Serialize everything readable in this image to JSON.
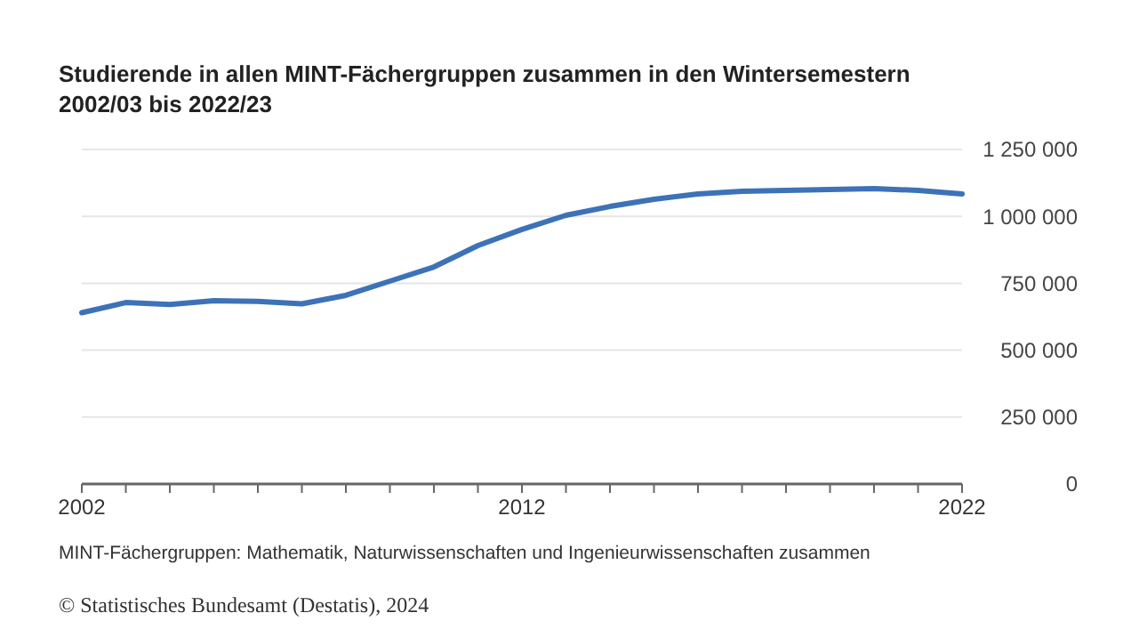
{
  "chart_data": {
    "type": "line",
    "title": "Studierende in allen MINT-Fächergruppen zusammen in den Wintersemestern 2002/03 bis 2022/23",
    "x": [
      2002,
      2003,
      2004,
      2005,
      2006,
      2007,
      2008,
      2009,
      2010,
      2011,
      2012,
      2013,
      2014,
      2015,
      2016,
      2017,
      2018,
      2019,
      2020,
      2021,
      2022
    ],
    "series": [
      {
        "color": "#3d72b8",
        "values": [
          640000,
          678000,
          671000,
          685000,
          682000,
          673000,
          705000,
          758000,
          811000,
          891000,
          951000,
          1004000,
          1037000,
          1064000,
          1084000,
          1094000,
          1097000,
          1100000,
          1104000,
          1097000,
          1084000
        ]
      }
    ],
    "xlim": [
      2002,
      2022
    ],
    "xticks": [
      2002,
      {
        "value": 2003,
        "label": null
      },
      {
        "value": 2004,
        "label": null
      },
      {
        "value": 2005,
        "label": null
      },
      {
        "value": 2006,
        "label": null
      },
      {
        "value": 2007,
        "label": null
      },
      {
        "value": 2008,
        "label": null
      },
      {
        "value": 2009,
        "label": null
      },
      {
        "value": 2010,
        "label": null
      },
      {
        "value": 2011,
        "label": null
      },
      2012,
      {
        "value": 2013,
        "label": null
      },
      {
        "value": 2014,
        "label": null
      },
      {
        "value": 2015,
        "label": null
      },
      {
        "value": 2016,
        "label": null
      },
      {
        "value": 2017,
        "label": null
      },
      {
        "value": 2018,
        "label": null
      },
      {
        "value": 2019,
        "label": null
      },
      {
        "value": 2020,
        "label": null
      },
      {
        "value": 2021,
        "label": null
      },
      2022
    ],
    "ylim": [
      0,
      1250000
    ],
    "yticks": [
      {
        "value": 0,
        "label": "0"
      },
      {
        "value": 250000,
        "label": "250 000"
      },
      {
        "value": 500000,
        "label": "500 000"
      },
      {
        "value": 750000,
        "label": "750 000"
      },
      {
        "value": 1000000,
        "label": "1 000 000"
      },
      {
        "value": 1250000,
        "label": "1 250 000"
      }
    ],
    "grid": "y",
    "marker": "none",
    "line_style": "solid",
    "annotations": [
      "MINT-Fächergruppen: Mathematik, Naturwissenschaften und Ingenieurwissenschaften zusammen",
      "© Statistisches Bundesamt (Destatis), 2024"
    ]
  }
}
